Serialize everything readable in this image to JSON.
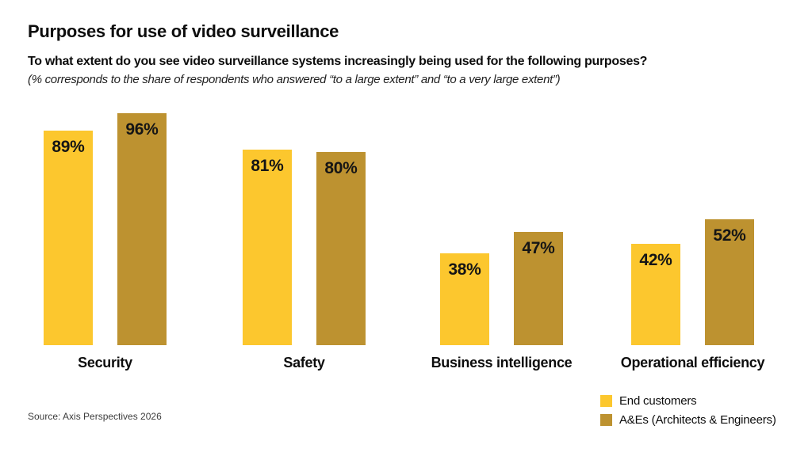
{
  "header": {
    "title": "Purposes for use of video surveillance",
    "question": "To what extent do you see video surveillance systems increasingly being used for the following purposes?",
    "note": "(% corresponds to the share of respondents who answered “to a large extent” and “to a very large extent”)"
  },
  "chart_data": {
    "type": "bar",
    "categories": [
      "Security",
      "Safety",
      "Business intelligence",
      "Operational efficiency"
    ],
    "series": [
      {
        "name": "End customers",
        "color": "#fcc72e",
        "values": [
          89,
          81,
          38,
          42
        ]
      },
      {
        "name": "A&Es (Architects & Engineers)",
        "color": "#bd9230",
        "values": [
          96,
          80,
          47,
          52
        ]
      }
    ],
    "value_suffix": "%",
    "ylim": [
      0,
      100
    ],
    "grid": false,
    "data_labels": "inside-top",
    "legend_position": "bottom-right"
  },
  "footer": {
    "source": "Source: Axis Perspectives 2026"
  }
}
